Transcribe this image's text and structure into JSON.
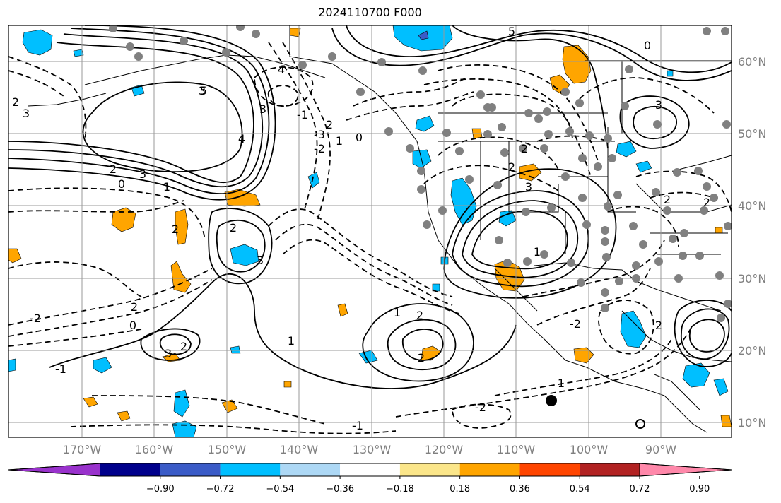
{
  "title": "2024110700 F000",
  "map": {
    "lat_labels": [
      "60°N",
      "50°N",
      "40°N",
      "30°N",
      "20°N",
      "10°N"
    ],
    "lon_labels": [
      "170°W",
      "160°W",
      "150°W",
      "140°W",
      "130°W",
      "120°W",
      "110°W",
      "100°W",
      "90°W"
    ],
    "contour_labels": [
      "5",
      "3",
      "2",
      "2",
      "1",
      "0",
      "3",
      "3",
      "2",
      "2",
      "4",
      "5",
      "3",
      "2",
      "1",
      "0",
      "-1",
      "-2",
      "-3",
      "1",
      "2",
      "2",
      "1",
      "0",
      "-1",
      "-2",
      "2",
      "3",
      "2",
      "-2",
      "3",
      "4",
      "-1",
      "1",
      "2",
      "-2",
      "1",
      "3",
      "2",
      "2",
      "3",
      "0",
      "2",
      "2"
    ],
    "grid": true,
    "colors": {
      "positive": "#ffa500",
      "negative": "#00bfff",
      "station_dot": "#808080",
      "contour": "#000000",
      "land_border": "#000000",
      "grid": "#999999"
    }
  },
  "colorbar": {
    "labels": [
      "−0.90",
      "−0.72",
      "−0.54",
      "−0.36",
      "−0.18",
      "0.18",
      "0.36",
      "0.54",
      "0.72",
      "0.90"
    ],
    "colors": [
      "#9932cc",
      "#00008b",
      "#3a5bc7",
      "#00bfff",
      "#add8f5",
      "#ffffff",
      "#fbe68a",
      "#ffa500",
      "#ff4500",
      "#b22222",
      "#ff88aa"
    ]
  }
}
